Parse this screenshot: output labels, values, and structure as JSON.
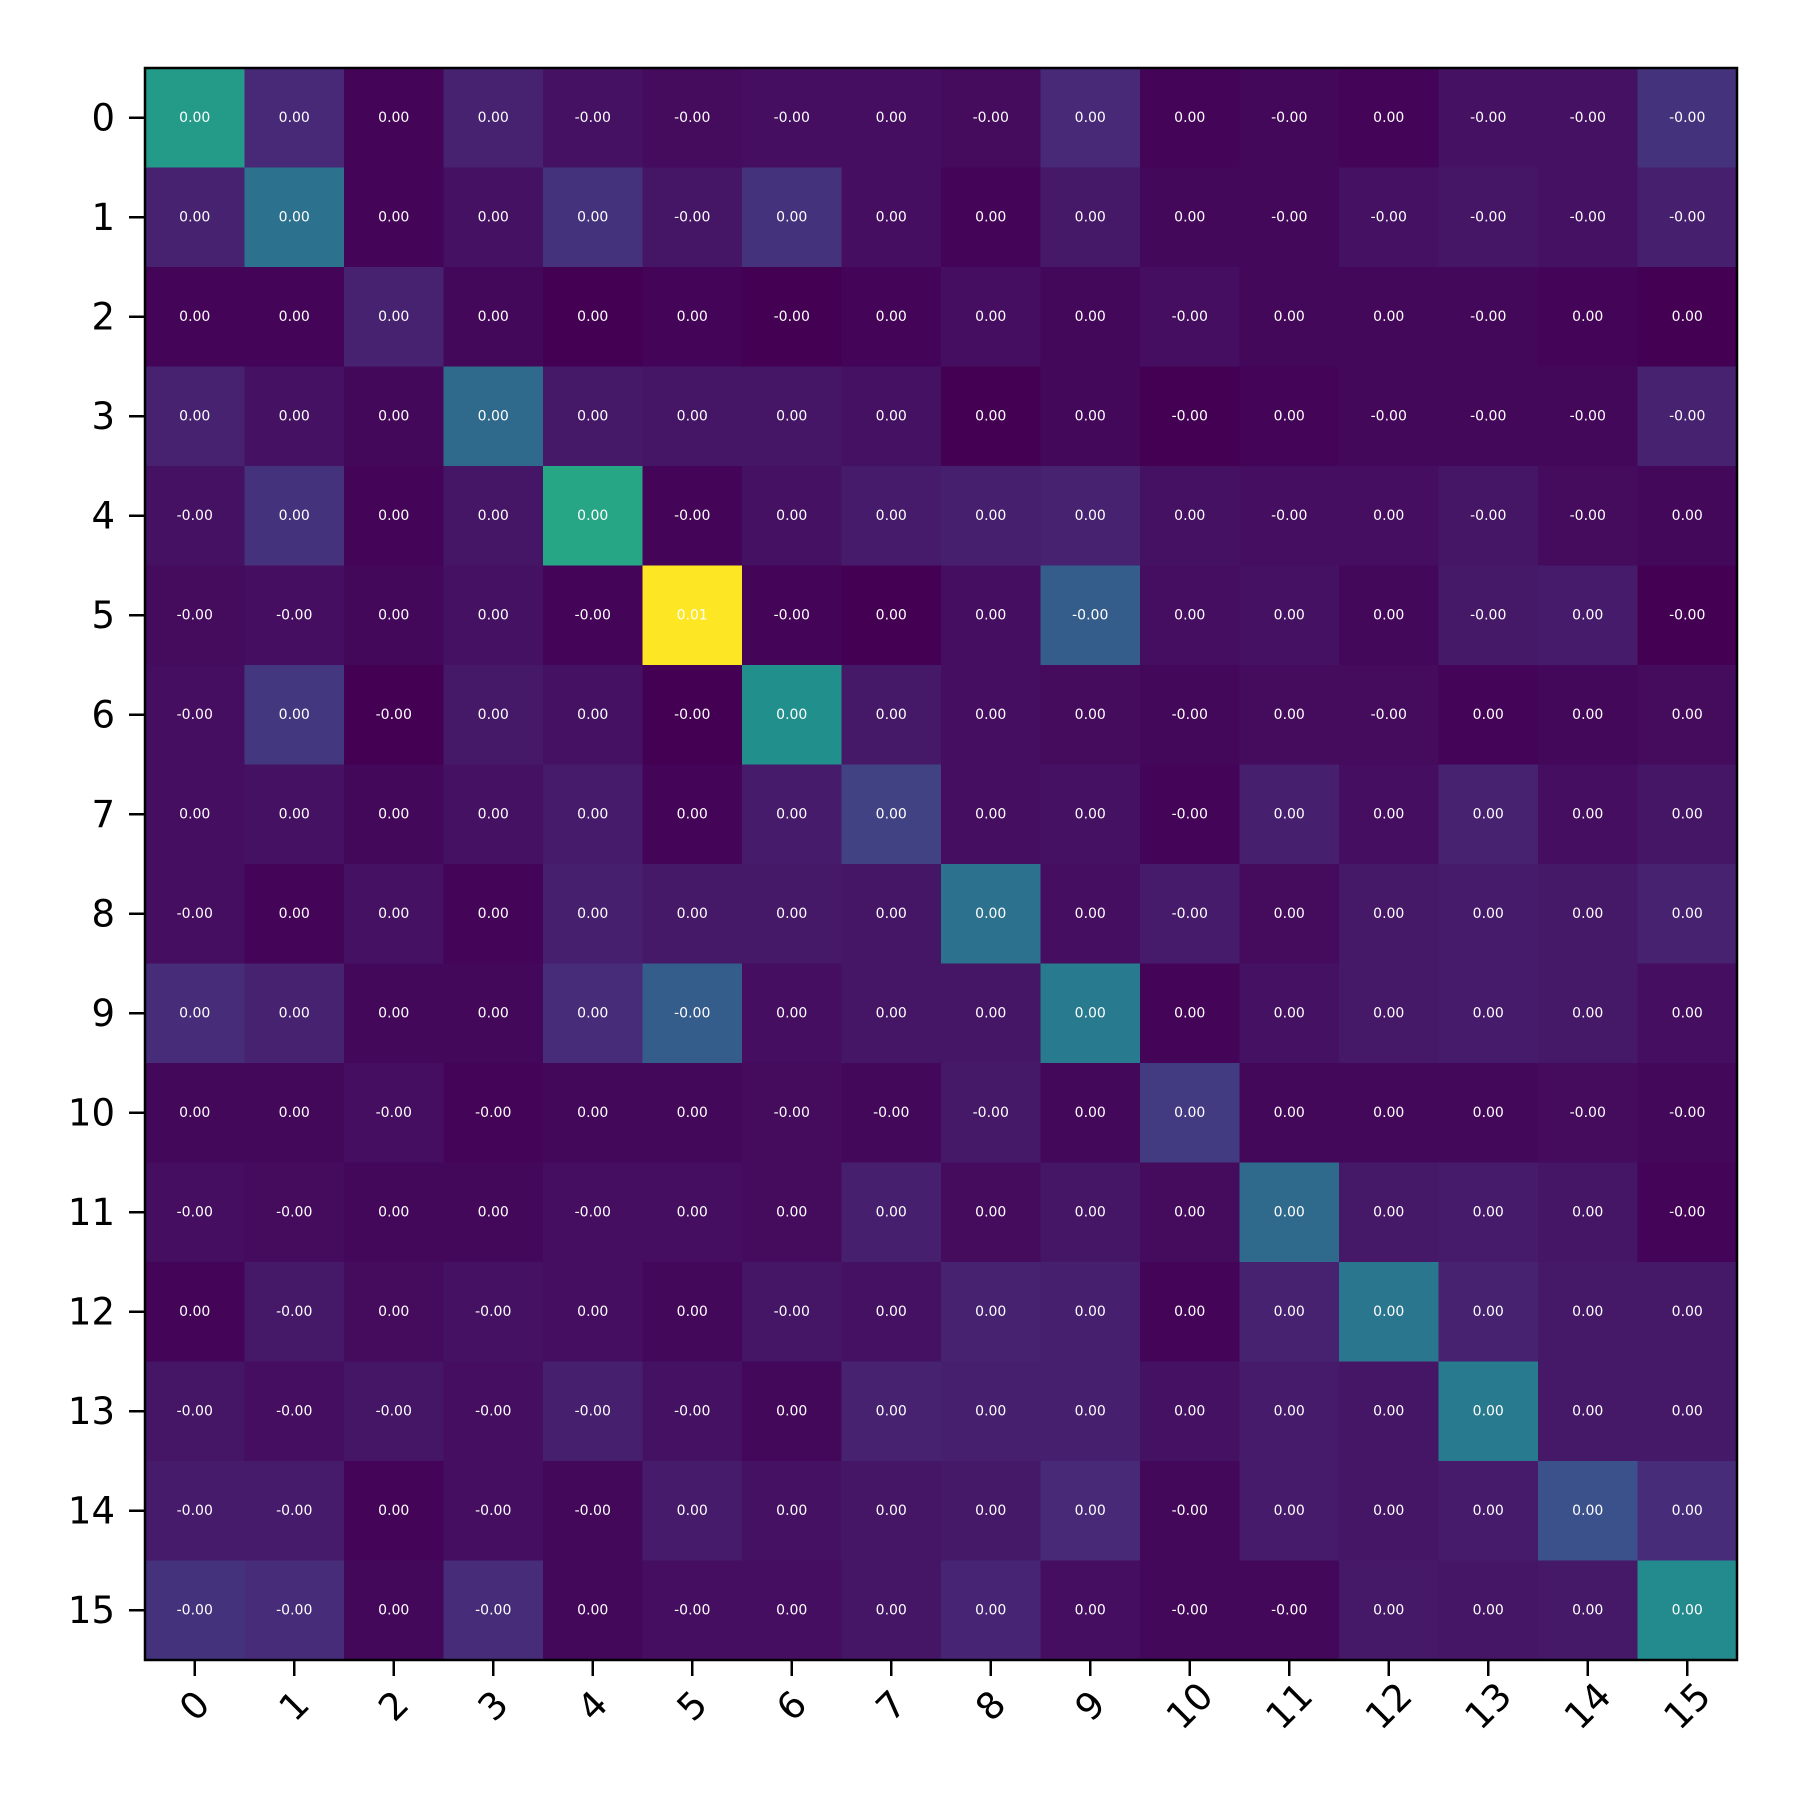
{
  "chart_data": {
    "type": "heatmap",
    "colormap": "viridis",
    "x_tick_labels": [
      "0",
      "1",
      "2",
      "3",
      "4",
      "5",
      "6",
      "7",
      "8",
      "9",
      "10",
      "11",
      "12",
      "13",
      "14",
      "15"
    ],
    "y_tick_labels": [
      "0",
      "1",
      "2",
      "3",
      "4",
      "5",
      "6",
      "7",
      "8",
      "9",
      "10",
      "11",
      "12",
      "13",
      "14",
      "15"
    ],
    "cell_labels": [
      [
        "0.00",
        "0.00",
        "0.00",
        "0.00",
        "-0.00",
        "-0.00",
        "-0.00",
        "0.00",
        "-0.00",
        "0.00",
        "0.00",
        "-0.00",
        "0.00",
        "-0.00",
        "-0.00",
        "-0.00"
      ],
      [
        "0.00",
        "0.00",
        "0.00",
        "0.00",
        "0.00",
        "-0.00",
        "0.00",
        "0.00",
        "0.00",
        "0.00",
        "0.00",
        "-0.00",
        "-0.00",
        "-0.00",
        "-0.00",
        "-0.00"
      ],
      [
        "0.00",
        "0.00",
        "0.00",
        "0.00",
        "0.00",
        "0.00",
        "-0.00",
        "0.00",
        "0.00",
        "0.00",
        "-0.00",
        "0.00",
        "0.00",
        "-0.00",
        "0.00",
        "0.00"
      ],
      [
        "0.00",
        "0.00",
        "0.00",
        "0.00",
        "0.00",
        "0.00",
        "0.00",
        "0.00",
        "0.00",
        "0.00",
        "-0.00",
        "0.00",
        "-0.00",
        "-0.00",
        "-0.00",
        "-0.00"
      ],
      [
        "-0.00",
        "0.00",
        "0.00",
        "0.00",
        "0.00",
        "-0.00",
        "0.00",
        "0.00",
        "0.00",
        "0.00",
        "0.00",
        "-0.00",
        "0.00",
        "-0.00",
        "-0.00",
        "0.00"
      ],
      [
        "-0.00",
        "-0.00",
        "0.00",
        "0.00",
        "-0.00",
        "0.01",
        "-0.00",
        "0.00",
        "0.00",
        "-0.00",
        "0.00",
        "0.00",
        "0.00",
        "-0.00",
        "0.00",
        "-0.00"
      ],
      [
        "-0.00",
        "0.00",
        "-0.00",
        "0.00",
        "0.00",
        "-0.00",
        "0.00",
        "0.00",
        "0.00",
        "0.00",
        "-0.00",
        "0.00",
        "-0.00",
        "0.00",
        "0.00",
        "0.00"
      ],
      [
        "0.00",
        "0.00",
        "0.00",
        "0.00",
        "0.00",
        "0.00",
        "0.00",
        "0.00",
        "0.00",
        "0.00",
        "-0.00",
        "0.00",
        "0.00",
        "0.00",
        "0.00",
        "0.00"
      ],
      [
        "-0.00",
        "0.00",
        "0.00",
        "0.00",
        "0.00",
        "0.00",
        "0.00",
        "0.00",
        "0.00",
        "0.00",
        "-0.00",
        "0.00",
        "0.00",
        "0.00",
        "0.00",
        "0.00"
      ],
      [
        "0.00",
        "0.00",
        "0.00",
        "0.00",
        "0.00",
        "-0.00",
        "0.00",
        "0.00",
        "0.00",
        "0.00",
        "0.00",
        "0.00",
        "0.00",
        "0.00",
        "0.00",
        "0.00"
      ],
      [
        "0.00",
        "0.00",
        "-0.00",
        "-0.00",
        "0.00",
        "0.00",
        "-0.00",
        "-0.00",
        "-0.00",
        "0.00",
        "0.00",
        "0.00",
        "0.00",
        "0.00",
        "-0.00",
        "-0.00"
      ],
      [
        "-0.00",
        "-0.00",
        "0.00",
        "0.00",
        "-0.00",
        "0.00",
        "0.00",
        "0.00",
        "0.00",
        "0.00",
        "0.00",
        "0.00",
        "0.00",
        "0.00",
        "0.00",
        "-0.00"
      ],
      [
        "0.00",
        "-0.00",
        "0.00",
        "-0.00",
        "0.00",
        "0.00",
        "-0.00",
        "0.00",
        "0.00",
        "0.00",
        "0.00",
        "0.00",
        "0.00",
        "0.00",
        "0.00",
        "0.00"
      ],
      [
        "-0.00",
        "-0.00",
        "-0.00",
        "-0.00",
        "-0.00",
        "-0.00",
        "0.00",
        "0.00",
        "0.00",
        "0.00",
        "0.00",
        "0.00",
        "0.00",
        "0.00",
        "0.00",
        "0.00"
      ],
      [
        "-0.00",
        "-0.00",
        "0.00",
        "-0.00",
        "-0.00",
        "0.00",
        "0.00",
        "0.00",
        "0.00",
        "0.00",
        "-0.00",
        "0.00",
        "0.00",
        "0.00",
        "0.00",
        "0.00"
      ],
      [
        "-0.00",
        "-0.00",
        "0.00",
        "-0.00",
        "0.00",
        "-0.00",
        "0.00",
        "0.00",
        "0.00",
        "0.00",
        "-0.00",
        "-0.00",
        "0.00",
        "0.00",
        "0.00",
        "0.00"
      ]
    ],
    "color_level": [
      [
        0.55,
        0.12,
        0.01,
        0.1,
        0.05,
        0.03,
        0.04,
        0.04,
        0.03,
        0.12,
        0.01,
        0.02,
        0.01,
        0.05,
        0.05,
        0.15
      ],
      [
        0.1,
        0.38,
        0.01,
        0.05,
        0.15,
        0.06,
        0.15,
        0.04,
        0.01,
        0.07,
        0.02,
        0.02,
        0.05,
        0.06,
        0.05,
        0.09
      ],
      [
        0.01,
        0.01,
        0.1,
        0.02,
        0.0,
        0.01,
        0.0,
        0.01,
        0.04,
        0.02,
        0.04,
        0.02,
        0.02,
        0.02,
        0.01,
        0.0
      ],
      [
        0.1,
        0.05,
        0.02,
        0.35,
        0.07,
        0.06,
        0.06,
        0.05,
        0.0,
        0.02,
        0.0,
        0.01,
        0.02,
        0.02,
        0.02,
        0.1
      ],
      [
        0.05,
        0.15,
        0.01,
        0.06,
        0.6,
        0.01,
        0.05,
        0.08,
        0.09,
        0.1,
        0.05,
        0.04,
        0.04,
        0.06,
        0.03,
        0.02
      ],
      [
        0.03,
        0.04,
        0.02,
        0.05,
        0.01,
        1.0,
        0.01,
        0.0,
        0.04,
        0.3,
        0.04,
        0.05,
        0.02,
        0.07,
        0.08,
        0.0
      ],
      [
        0.04,
        0.17,
        0.0,
        0.07,
        0.05,
        0.0,
        0.5,
        0.07,
        0.04,
        0.03,
        0.02,
        0.03,
        0.03,
        0.01,
        0.02,
        0.03
      ],
      [
        0.04,
        0.05,
        0.02,
        0.05,
        0.08,
        0.01,
        0.08,
        0.2,
        0.04,
        0.05,
        0.01,
        0.09,
        0.04,
        0.1,
        0.04,
        0.06
      ],
      [
        0.04,
        0.01,
        0.05,
        0.01,
        0.09,
        0.07,
        0.07,
        0.06,
        0.38,
        0.04,
        0.08,
        0.03,
        0.07,
        0.08,
        0.07,
        0.1
      ],
      [
        0.13,
        0.1,
        0.02,
        0.02,
        0.13,
        0.3,
        0.04,
        0.06,
        0.06,
        0.42,
        0.01,
        0.05,
        0.07,
        0.08,
        0.07,
        0.04
      ],
      [
        0.02,
        0.02,
        0.04,
        0.01,
        0.02,
        0.02,
        0.03,
        0.02,
        0.07,
        0.02,
        0.18,
        0.02,
        0.02,
        0.02,
        0.03,
        0.02
      ],
      [
        0.04,
        0.03,
        0.02,
        0.02,
        0.04,
        0.04,
        0.03,
        0.09,
        0.03,
        0.06,
        0.03,
        0.35,
        0.07,
        0.08,
        0.06,
        0.01
      ],
      [
        0.01,
        0.07,
        0.03,
        0.05,
        0.04,
        0.02,
        0.06,
        0.05,
        0.1,
        0.09,
        0.01,
        0.1,
        0.4,
        0.1,
        0.07,
        0.07
      ],
      [
        0.06,
        0.04,
        0.06,
        0.04,
        0.09,
        0.05,
        0.02,
        0.1,
        0.09,
        0.09,
        0.05,
        0.08,
        0.06,
        0.42,
        0.07,
        0.07
      ],
      [
        0.08,
        0.08,
        0.01,
        0.04,
        0.02,
        0.08,
        0.05,
        0.06,
        0.07,
        0.12,
        0.02,
        0.08,
        0.06,
        0.08,
        0.25,
        0.13
      ],
      [
        0.15,
        0.13,
        0.02,
        0.13,
        0.02,
        0.04,
        0.04,
        0.06,
        0.11,
        0.04,
        0.02,
        0.02,
        0.07,
        0.06,
        0.07,
        0.48
      ]
    ]
  }
}
